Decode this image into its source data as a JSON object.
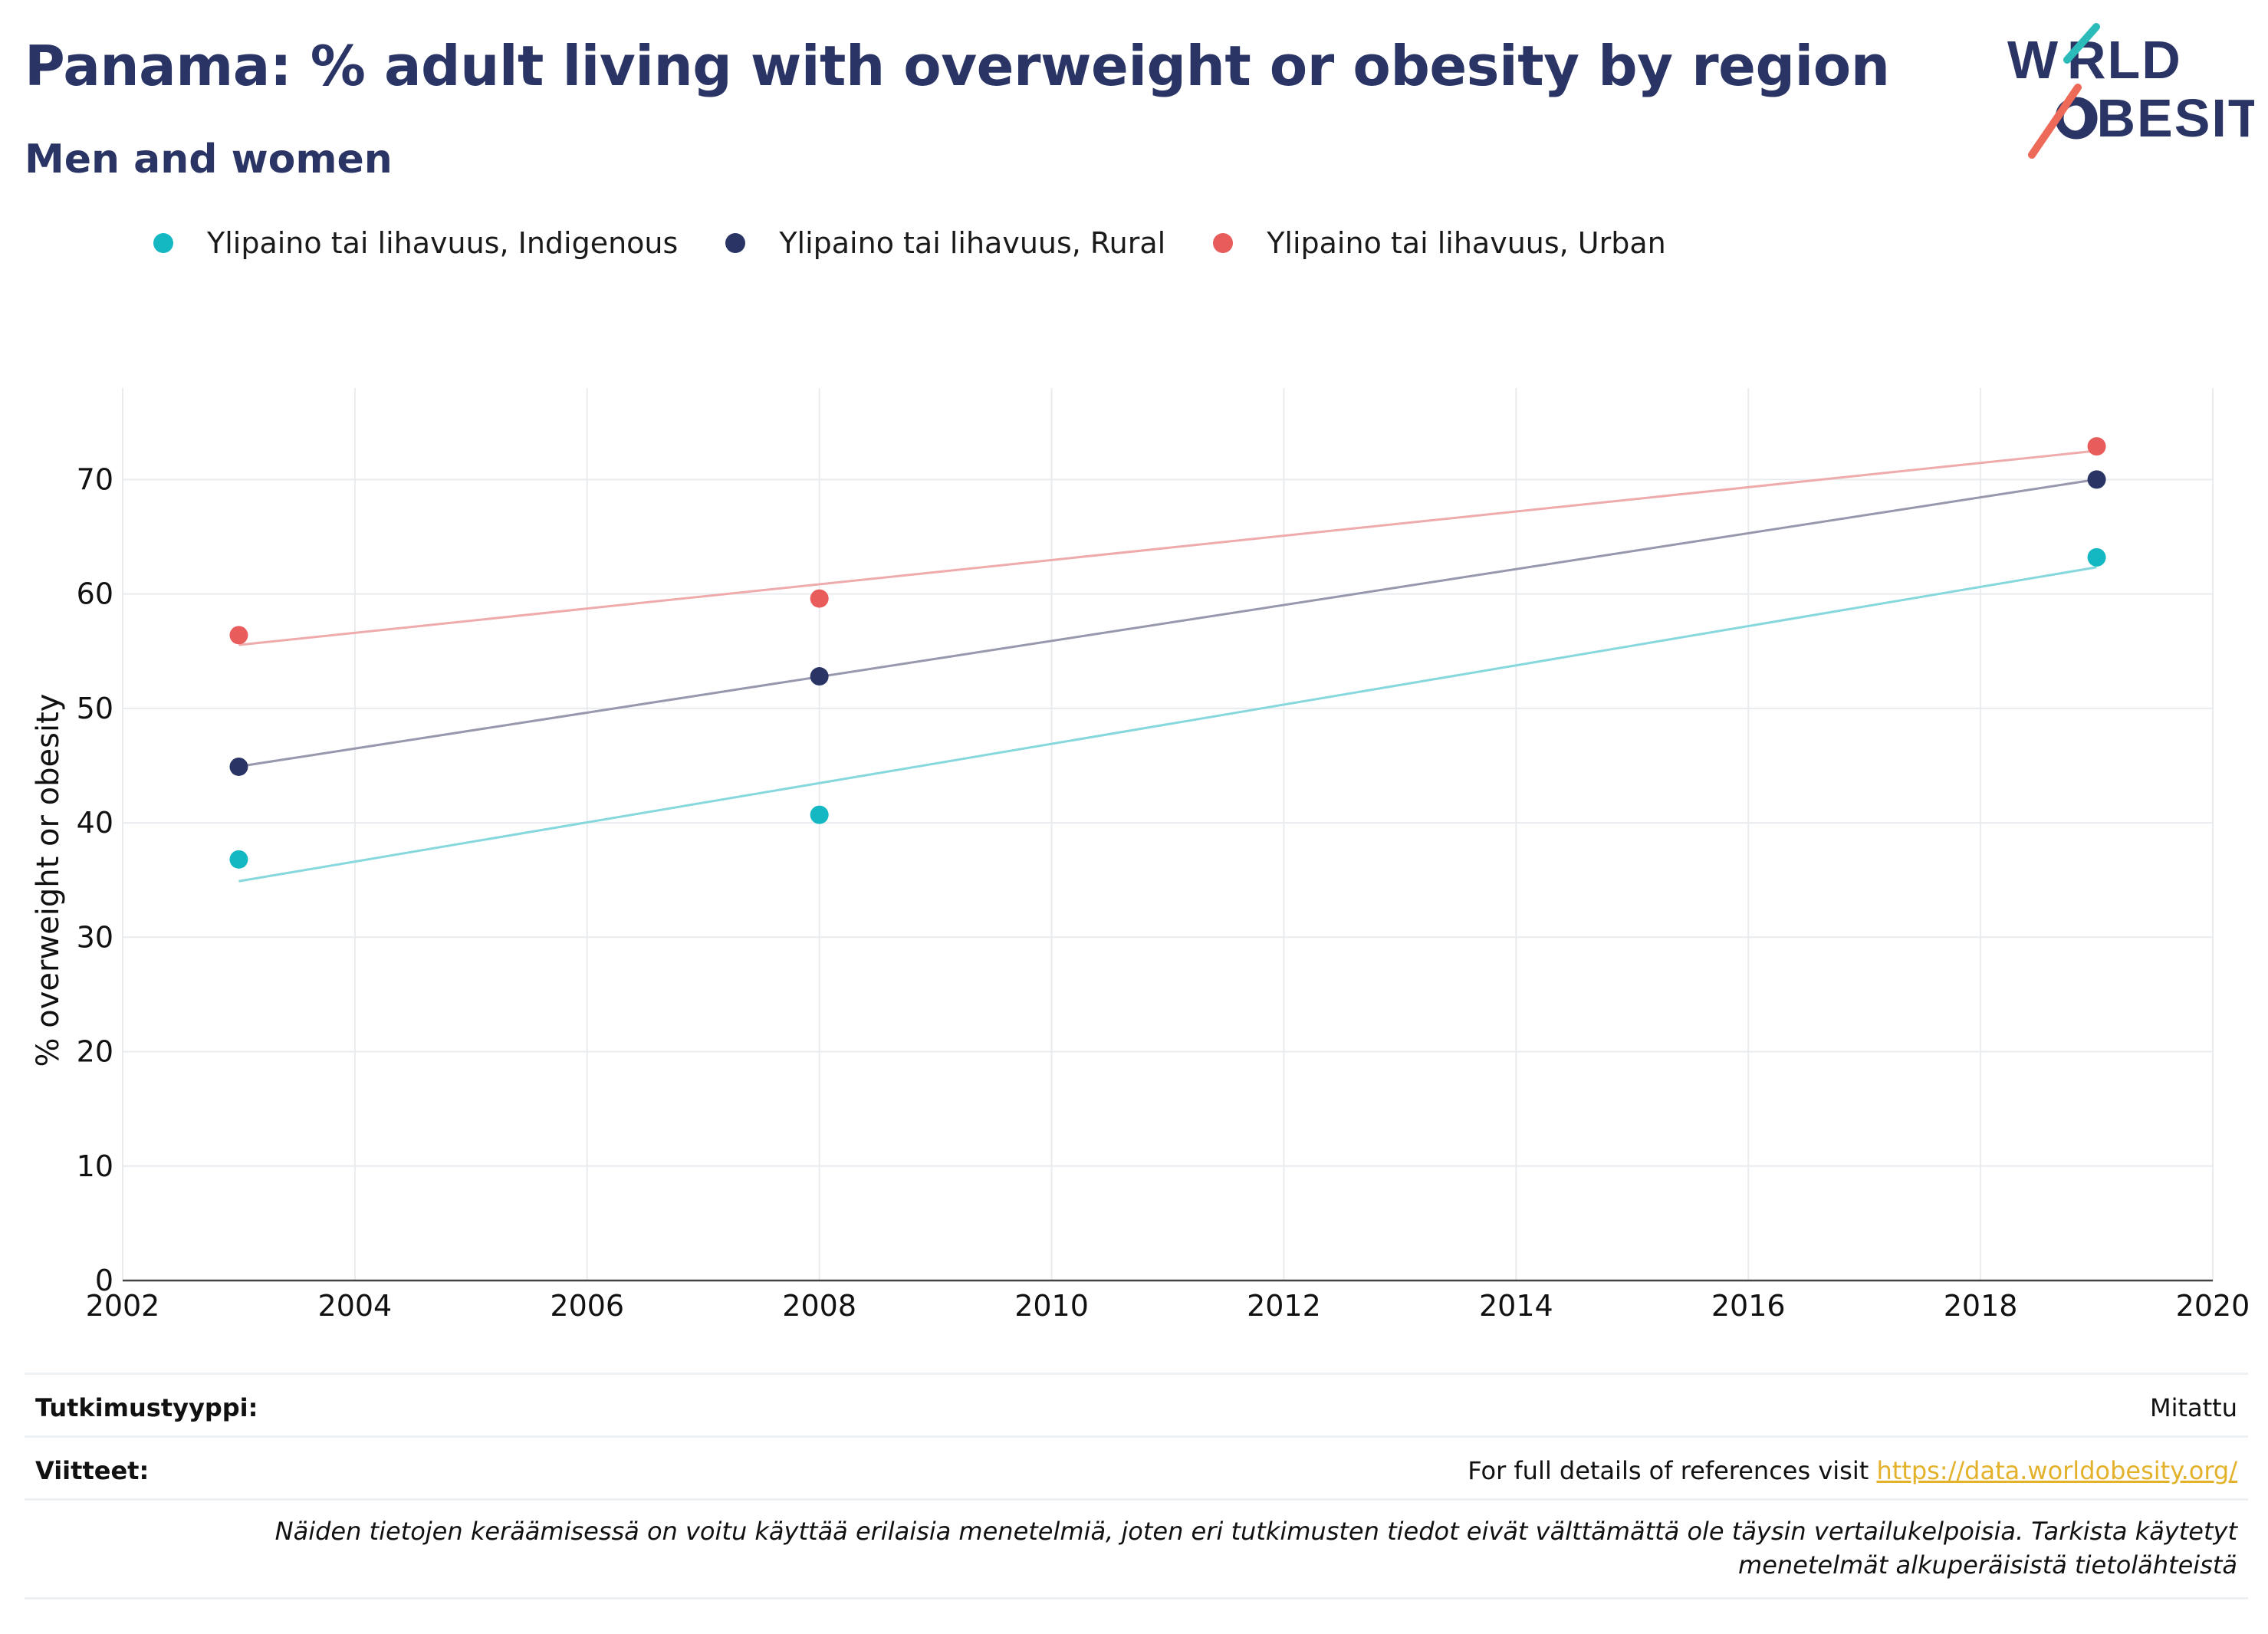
{
  "header": {
    "title": "Panama: % adult living with overweight or obesity by region",
    "subtitle": "Men and women"
  },
  "logo": {
    "line1": "WORLD",
    "line2": "OBESITY"
  },
  "legend": [
    {
      "label": "Ylipaino tai lihavuus, Indigenous",
      "color": "#14b8c2"
    },
    {
      "label": "Ylipaino tai lihavuus, Rural",
      "color": "#2b3565"
    },
    {
      "label": "Ylipaino tai lihavuus, Urban",
      "color": "#e85c5c"
    }
  ],
  "chart_data": {
    "type": "scatter",
    "title": "Panama: % adult living with overweight or obesity by region",
    "subtitle": "Men and women",
    "xlabel": "",
    "ylabel": "% overweight or obesity",
    "xlim": [
      2002,
      2020
    ],
    "ylim": [
      0,
      78
    ],
    "x_ticks": [
      2002,
      2004,
      2006,
      2008,
      2010,
      2012,
      2014,
      2016,
      2018,
      2020
    ],
    "y_ticks": [
      0,
      10,
      20,
      30,
      40,
      50,
      60,
      70
    ],
    "grid": true,
    "legend_position": "top-left",
    "trendlines": true,
    "series": [
      {
        "name": "Ylipaino tai lihavuus, Indigenous",
        "color": "#14b8c2",
        "trend_color": "#86d8dc",
        "x": [
          2003,
          2008,
          2019
        ],
        "y": [
          36.8,
          40.7,
          63.2
        ]
      },
      {
        "name": "Ylipaino tai lihavuus, Rural",
        "color": "#2b3565",
        "trend_color": "#9797ae",
        "x": [
          2003,
          2008,
          2019
        ],
        "y": [
          44.9,
          52.8,
          70.0
        ]
      },
      {
        "name": "Ylipaino tai lihavuus, Urban",
        "color": "#e85c5c",
        "trend_color": "#efabab",
        "x": [
          2003,
          2008,
          2019
        ],
        "y": [
          56.4,
          59.6,
          72.9
        ]
      }
    ]
  },
  "info": {
    "study_type_key": "Tutkimustyyppi:",
    "study_type_value": "Mitattu",
    "references_key": "Viitteet:",
    "references_text": "For full details of references visit",
    "references_link": "https://data.worldobesity.org/",
    "note": "Näiden tietojen keräämisessä on voitu käyttää erilaisia menetelmiä, joten eri tutkimusten tiedot eivät välttämättä ole täysin vertailukelpoisia. Tarkista käytetyt menetelmät alkuperäisistä tietolähteistä"
  }
}
